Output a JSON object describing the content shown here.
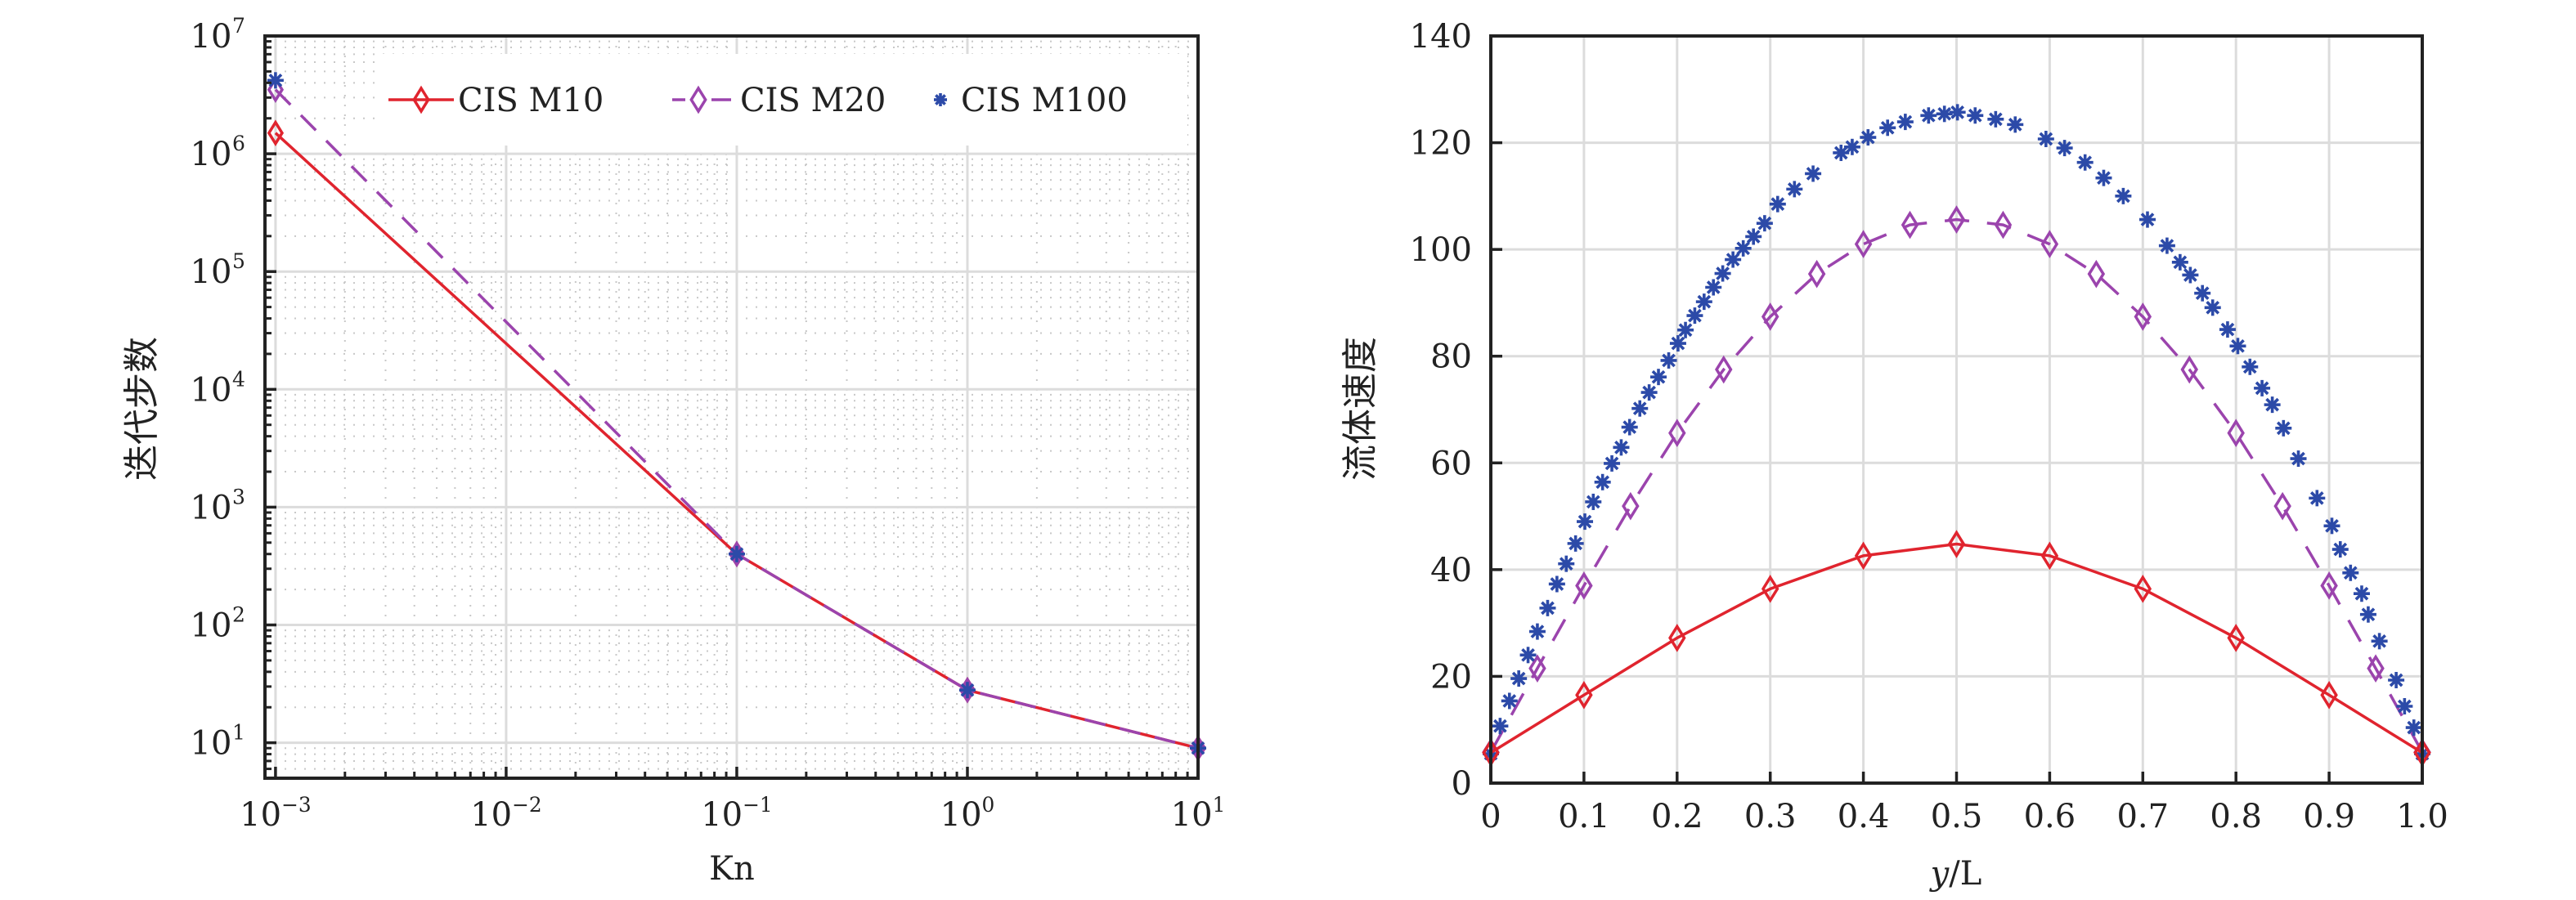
{
  "chart_data": [
    {
      "type": "line",
      "panel": "left",
      "title": "",
      "xlabel": "Kn",
      "ylabel": "迭代步数",
      "xscale": "log",
      "yscale": "log",
      "xlim": [
        0.0009,
        10
      ],
      "ylim": [
        5,
        10000000
      ],
      "grid": true,
      "minor_grid": true,
      "legend_position": "top-right",
      "x_ticks": [
        {
          "value": 0.001,
          "base": "10",
          "exp": "−3"
        },
        {
          "value": 0.01,
          "base": "10",
          "exp": "−2"
        },
        {
          "value": 0.1,
          "base": "10",
          "exp": "−1"
        },
        {
          "value": 1,
          "base": "10",
          "exp": "0"
        },
        {
          "value": 10,
          "base": "10",
          "exp": "1"
        }
      ],
      "y_ticks": [
        {
          "value": 10,
          "base": "10",
          "exp": "1"
        },
        {
          "value": 100,
          "base": "10",
          "exp": "2"
        },
        {
          "value": 1000,
          "base": "10",
          "exp": "3"
        },
        {
          "value": 10000,
          "base": "10",
          "exp": "4"
        },
        {
          "value": 100000,
          "base": "10",
          "exp": "5"
        },
        {
          "value": 1000000,
          "base": "10",
          "exp": "6"
        },
        {
          "value": 10000000,
          "base": "10",
          "exp": "7"
        }
      ],
      "x": [
        0.001,
        0.1,
        1,
        10
      ],
      "series": [
        {
          "name": "CIS M10",
          "color": "#e0242e",
          "line": "solid",
          "marker": "diamond",
          "values": [
            1500000,
            400,
            28,
            9
          ]
        },
        {
          "name": "CIS M20",
          "color": "#9b44ad",
          "line": "dashed",
          "marker": "diamond",
          "values": [
            3500000,
            400,
            28,
            9
          ]
        },
        {
          "name": "CIS M100",
          "color": "#2c4aa8",
          "line": "none",
          "marker": "asterisk",
          "values": [
            4200000,
            400,
            28,
            9
          ]
        }
      ]
    },
    {
      "type": "line",
      "panel": "right",
      "title": "",
      "xlabel": "y/L",
      "xlabel_italic_part": "y",
      "xlabel_rest": "/L",
      "ylabel": "流体速度",
      "xlim": [
        0,
        1
      ],
      "ylim": [
        0,
        140
      ],
      "grid": true,
      "x_ticks": [
        "0",
        "0.1",
        "0.2",
        "0.3",
        "0.4",
        "0.5",
        "0.6",
        "0.7",
        "0.8",
        "0.9",
        "1.0"
      ],
      "x_tick_values": [
        0,
        0.1,
        0.2,
        0.3,
        0.4,
        0.5,
        0.6,
        0.7,
        0.8,
        0.9,
        1.0
      ],
      "y_ticks": [
        "0",
        "20",
        "40",
        "60",
        "80",
        "100",
        "120",
        "140"
      ],
      "y_tick_values": [
        0,
        20,
        40,
        60,
        80,
        100,
        120,
        140
      ],
      "series": [
        {
          "name": "CIS M10",
          "color": "#e0242e",
          "line": "solid",
          "marker": "diamond",
          "x": [
            0,
            0.1,
            0.2,
            0.3,
            0.4,
            0.5,
            0.6,
            0.7,
            0.8,
            0.9,
            1.0
          ],
          "values": [
            5.7,
            16.5,
            27.2,
            36.4,
            42.6,
            44.8,
            42.6,
            36.4,
            27.2,
            16.5,
            5.7
          ]
        },
        {
          "name": "CIS M20",
          "color": "#9b44ad",
          "line": "dashed",
          "marker": "diamond",
          "x": [
            0,
            0.05,
            0.1,
            0.15,
            0.2,
            0.25,
            0.3,
            0.35,
            0.4,
            0.45,
            0.5,
            0.55,
            0.6,
            0.65,
            0.7,
            0.75,
            0.8,
            0.85,
            0.9,
            0.95,
            1.0
          ],
          "values": [
            5.8,
            21.5,
            37.0,
            51.9,
            65.6,
            77.5,
            87.4,
            95.4,
            101.0,
            104.6,
            105.6,
            104.6,
            101.0,
            95.4,
            87.4,
            77.5,
            65.6,
            51.9,
            37.0,
            21.5,
            5.8
          ]
        },
        {
          "name": "CIS M100",
          "color": "#2c4aa8",
          "line": "none",
          "marker": "asterisk",
          "x": [
            0,
            0.01,
            0.02,
            0.03,
            0.04,
            0.05,
            0.061,
            0.071,
            0.081,
            0.091,
            0.101,
            0.11,
            0.12,
            0.13,
            0.14,
            0.149,
            0.16,
            0.17,
            0.18,
            0.191,
            0.201,
            0.209,
            0.219,
            0.229,
            0.239,
            0.249,
            0.26,
            0.271,
            0.282,
            0.294,
            0.308,
            0.326,
            0.346,
            0.376,
            0.388,
            0.405,
            0.426,
            0.445,
            0.47,
            0.487,
            0.501,
            0.52,
            0.542,
            0.563,
            0.596,
            0.616,
            0.638,
            0.658,
            0.679,
            0.705,
            0.726,
            0.74,
            0.751,
            0.764,
            0.775,
            0.791,
            0.802,
            0.815,
            0.828,
            0.839,
            0.851,
            0.867,
            0.887,
            0.903,
            0.912,
            0.923,
            0.935,
            0.942,
            0.954,
            0.972,
            0.981,
            0.991,
            1.0
          ],
          "values": [
            5.5,
            10.7,
            15.4,
            19.6,
            24.0,
            28.4,
            32.8,
            37.3,
            41.1,
            44.9,
            49.0,
            52.7,
            56.4,
            59.9,
            62.9,
            66.7,
            70.2,
            73.2,
            76.1,
            79.2,
            82.4,
            84.9,
            87.6,
            90.2,
            92.9,
            95.5,
            98.1,
            100.2,
            102.4,
            104.9,
            108.5,
            111.3,
            114.2,
            118.1,
            119.2,
            121.0,
            122.8,
            123.9,
            125.1,
            125.4,
            125.7,
            125.1,
            124.4,
            123.4,
            120.7,
            119.0,
            116.3,
            113.4,
            110.0,
            105.6,
            100.7,
            97.6,
            95.2,
            91.8,
            89.1,
            85.0,
            81.9,
            78.0,
            74.0,
            70.9,
            66.5,
            60.8,
            53.4,
            48.2,
            43.8,
            39.4,
            35.5,
            31.6,
            26.6,
            19.3,
            14.4,
            10.4,
            5.5
          ]
        }
      ]
    }
  ]
}
